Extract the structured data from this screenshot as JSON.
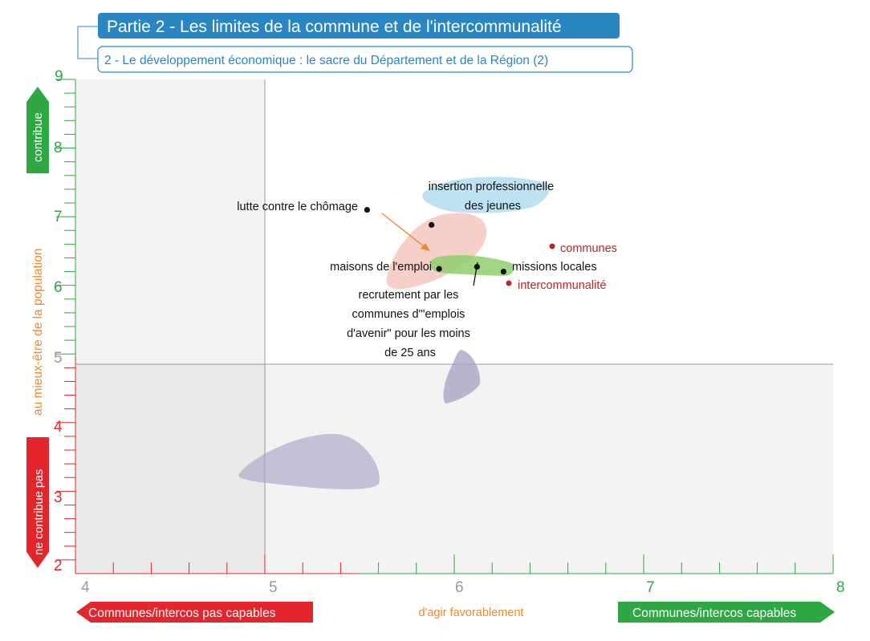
{
  "header": {
    "title": "Partie 2 - Les limites de la commune et de l'intercommunalité",
    "subtitle": "2 - Le développement économique : le sacre du Département et de la Région (2)"
  },
  "colors": {
    "accent_blue": "#2a86c3",
    "green": "#2ea843",
    "red": "#e3262b",
    "orange": "#ee8a2b",
    "dark_red": "#b5252a",
    "shade_light": "#f3f3f3",
    "shade_dark": "#e9e9e9"
  },
  "chart_data": {
    "type": "scatter",
    "title": "",
    "xlim": [
      4,
      8
    ],
    "ylim": [
      1.8,
      9
    ],
    "x_ticks": [
      "4",
      "5",
      "6",
      "7",
      "8"
    ],
    "y_ticks_green": [
      "5",
      "6",
      "7",
      "8",
      "9"
    ],
    "y_ticks_red": [
      "2",
      "3",
      "4"
    ],
    "x_threshold": 5,
    "y_threshold": 4.85,
    "xlabel": "d'agir favorablement",
    "x_left_label": "Communes/intercos pas capables",
    "x_right_label": "Communes/intercos capables",
    "ylabel": "au mieux-être de la population",
    "y_top_label": "contribue",
    "y_bottom_label": "ne contribue pas",
    "legend": [
      {
        "label": "communes",
        "color": "#b5252a"
      },
      {
        "label": "intercommunalité",
        "color": "#b5252a"
      }
    ],
    "points": [
      {
        "label": "lutte contre le chômage",
        "x": 5.54,
        "y": 7.1
      },
      {
        "label": "",
        "x": 5.88,
        "y": 6.88
      },
      {
        "label": "maisons de l'emploi",
        "x": 5.92,
        "y": 6.24
      },
      {
        "label": "recrutement par les communes d'\"emplois d'avenir\" pour les moins de 25 ans",
        "x": 6.12,
        "y": 6.27
      },
      {
        "label": "missions locales",
        "x": 6.26,
        "y": 6.2
      }
    ],
    "annotations": [
      {
        "text": "insertion professionnelle des jeunes"
      }
    ]
  }
}
